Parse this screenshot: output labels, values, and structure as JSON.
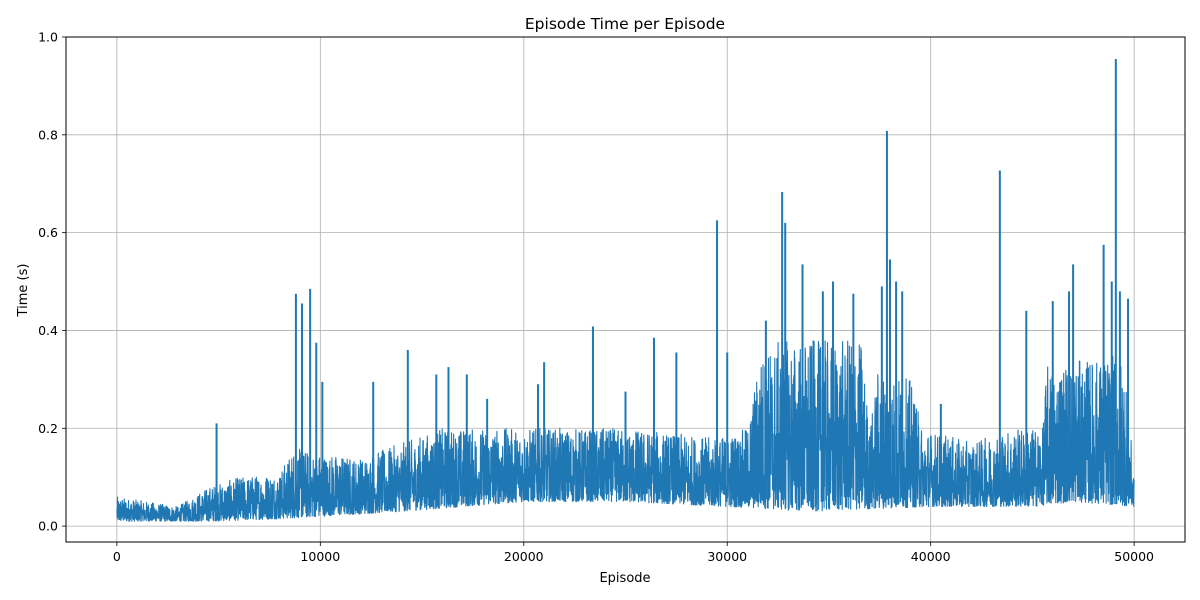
{
  "chart_data": {
    "type": "line",
    "title": "Episode Time per Episode",
    "xlabel": "Episode",
    "ylabel": "Time (s)",
    "xlim": [
      -2500,
      52500
    ],
    "ylim": [
      -0.0325,
      1.0
    ],
    "xticks": [
      0,
      10000,
      20000,
      30000,
      40000,
      50000
    ],
    "yticks": [
      0.0,
      0.2,
      0.4,
      0.6,
      0.8,
      1.0
    ],
    "grid": true,
    "series_color": "#1f77b4",
    "series": [
      {
        "episodes": 50000,
        "baseline": [
          [
            0,
            0.01
          ],
          [
            3000,
            0.01
          ],
          [
            4500,
            0.01
          ],
          [
            8000,
            0.015
          ],
          [
            10000,
            0.02
          ],
          [
            14000,
            0.03
          ],
          [
            20000,
            0.05
          ],
          [
            25000,
            0.05
          ],
          [
            30000,
            0.04
          ],
          [
            34000,
            0.03
          ],
          [
            40000,
            0.04
          ],
          [
            45000,
            0.04
          ],
          [
            47000,
            0.05
          ],
          [
            50000,
            0.04
          ]
        ],
        "upper": [
          [
            0,
            0.06
          ],
          [
            3000,
            0.04
          ],
          [
            4500,
            0.08
          ],
          [
            6000,
            0.1
          ],
          [
            8000,
            0.11
          ],
          [
            8700,
            0.16
          ],
          [
            10000,
            0.15
          ],
          [
            12000,
            0.14
          ],
          [
            14000,
            0.17
          ],
          [
            16000,
            0.2
          ],
          [
            20000,
            0.2
          ],
          [
            25000,
            0.2
          ],
          [
            29500,
            0.18
          ],
          [
            31000,
            0.2
          ],
          [
            31600,
            0.35
          ],
          [
            32600,
            0.38
          ],
          [
            36600,
            0.38
          ],
          [
            37000,
            0.2
          ],
          [
            37400,
            0.32
          ],
          [
            39000,
            0.3
          ],
          [
            39600,
            0.2
          ],
          [
            42000,
            0.17
          ],
          [
            44000,
            0.2
          ],
          [
            45500,
            0.2
          ],
          [
            45700,
            0.33
          ],
          [
            49500,
            0.35
          ],
          [
            50000,
            0.1
          ]
        ],
        "spikes": [
          [
            4900,
            0.21
          ],
          [
            8800,
            0.475
          ],
          [
            9100,
            0.455
          ],
          [
            9500,
            0.485
          ],
          [
            9800,
            0.375
          ],
          [
            10100,
            0.295
          ],
          [
            12600,
            0.295
          ],
          [
            14300,
            0.36
          ],
          [
            15700,
            0.31
          ],
          [
            16300,
            0.325
          ],
          [
            17200,
            0.31
          ],
          [
            18200,
            0.26
          ],
          [
            20700,
            0.29
          ],
          [
            21000,
            0.335
          ],
          [
            23400,
            0.408
          ],
          [
            25000,
            0.275
          ],
          [
            26400,
            0.385
          ],
          [
            27500,
            0.355
          ],
          [
            29500,
            0.625
          ],
          [
            30000,
            0.355
          ],
          [
            31900,
            0.42
          ],
          [
            32700,
            0.683
          ],
          [
            32850,
            0.62
          ],
          [
            33700,
            0.535
          ],
          [
            34700,
            0.48
          ],
          [
            35200,
            0.5
          ],
          [
            36200,
            0.475
          ],
          [
            37600,
            0.49
          ],
          [
            37850,
            0.808
          ],
          [
            38000,
            0.545
          ],
          [
            38300,
            0.5
          ],
          [
            38600,
            0.48
          ],
          [
            40500,
            0.25
          ],
          [
            43400,
            0.727
          ],
          [
            44700,
            0.44
          ],
          [
            46000,
            0.46
          ],
          [
            46800,
            0.48
          ],
          [
            47000,
            0.535
          ],
          [
            48500,
            0.575
          ],
          [
            48900,
            0.5
          ],
          [
            49100,
            0.955
          ],
          [
            49300,
            0.48
          ],
          [
            49700,
            0.465
          ]
        ]
      }
    ]
  }
}
